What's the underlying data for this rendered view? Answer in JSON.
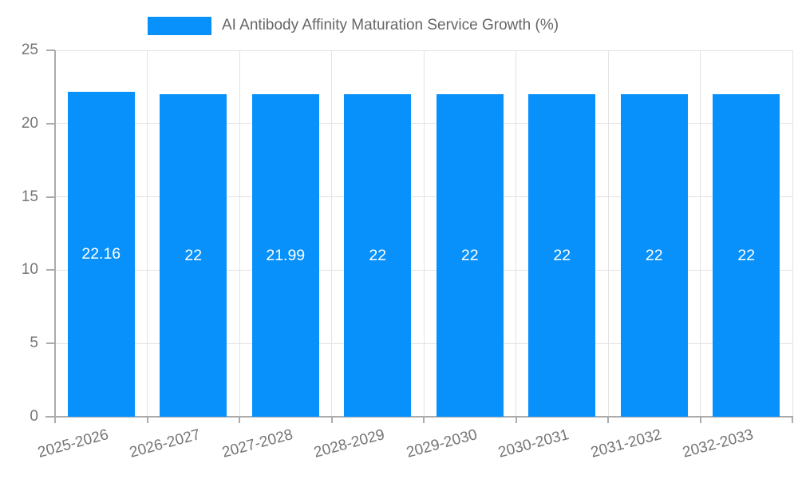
{
  "chart_data": {
    "type": "bar",
    "title": "AI Antibody Affinity Maturation Service Growth (%)",
    "categories": [
      "2025-2026",
      "2026-2027",
      "2027-2028",
      "2028-2029",
      "2029-2030",
      "2030-2031",
      "2031-2032",
      "2032-2033"
    ],
    "values": [
      22.16,
      22,
      21.99,
      22,
      22,
      22,
      22,
      22
    ],
    "value_labels": [
      "22.16",
      "22",
      "21.99",
      "22",
      "22",
      "22",
      "22",
      "22"
    ],
    "xlabel": "",
    "ylabel": "",
    "ylim": [
      0,
      25
    ],
    "yticks": [
      0,
      5,
      10,
      15,
      20,
      25
    ],
    "grid": true,
    "legend_position": "top",
    "x_label_rotation_deg": -15,
    "colors": {
      "bar": "#0891FB",
      "value_label": "#FFFFFF",
      "axis_text": "#757575",
      "legend_text": "#666666",
      "grid_line": "#E3E3E3",
      "axis_line": "#ABABAB",
      "background": "#FFFFFF"
    }
  }
}
